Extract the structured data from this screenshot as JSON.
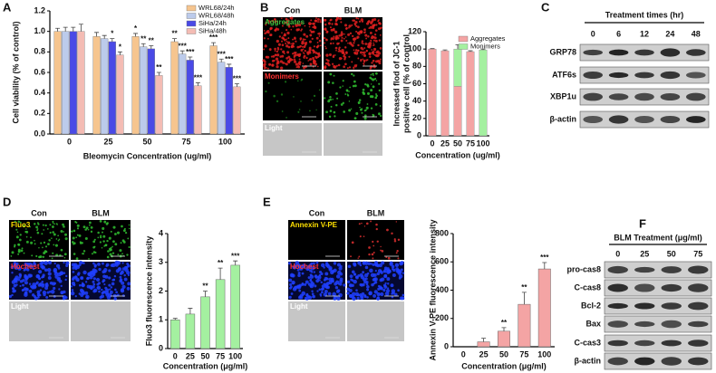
{
  "panel_letters": [
    "A",
    "B",
    "C",
    "D",
    "E",
    "F"
  ],
  "chart_data": [
    {
      "type": "bar",
      "categories": [
        "0",
        "25",
        "50",
        "75",
        "100"
      ],
      "series": [
        {
          "name": "WRL68/24h",
          "color": "#f6c58f",
          "values": [
            1.0,
            0.95,
            0.95,
            0.9,
            0.86
          ],
          "errors": [
            0.03,
            0.04,
            0.03,
            0.03,
            0.03
          ],
          "annotations": [
            null,
            null,
            "*",
            "**",
            "***"
          ]
        },
        {
          "name": "WRL68/48h",
          "color": "#bccbeb",
          "values": [
            1.0,
            0.93,
            0.85,
            0.78,
            0.7
          ],
          "errors": [
            0.04,
            0.03,
            0.03,
            0.03,
            0.03
          ],
          "annotations": [
            null,
            null,
            "**",
            "***",
            "***"
          ]
        },
        {
          "name": "SiHa/24h",
          "color": "#4a4ae6",
          "values": [
            1.0,
            0.9,
            0.83,
            0.72,
            0.65
          ],
          "errors": [
            0.04,
            0.03,
            0.03,
            0.03,
            0.03
          ],
          "annotations": [
            null,
            "*",
            "**",
            "***",
            "***"
          ]
        },
        {
          "name": "SiHa/48h",
          "color": "#f4bcb4",
          "values": [
            1.0,
            0.77,
            0.57,
            0.47,
            0.46
          ],
          "errors": [
            0.07,
            0.03,
            0.03,
            0.03,
            0.03
          ],
          "annotations": [
            null,
            "*",
            "**",
            "***",
            "***"
          ]
        }
      ],
      "ylim": [
        0,
        1.2
      ],
      "yticks": [
        {
          "value": 0,
          "label": "0.0"
        },
        0.2,
        0.4,
        0.6,
        0.8,
        {
          "value": 1,
          "label": "1.0"
        },
        1.2
      ],
      "ylabel": [
        "Cell viability  (% of control)"
      ],
      "xlabel": "Bleomycin Concentration  (ug/ml)",
      "legend": "upper right"
    },
    {
      "type": "bar",
      "stacked": true,
      "categories": [
        "0",
        "25",
        "50",
        "75",
        "100"
      ],
      "series": [
        {
          "name": "Aggregates",
          "color": "#f4a4a4",
          "values": [
            100,
            98,
            57,
            97,
            0
          ],
          "errors": [
            0.5,
            1,
            6,
            1,
            0
          ]
        },
        {
          "name": "Monimers",
          "color": "#a4f0a0",
          "values": [
            0,
            0,
            43,
            0,
            99
          ],
          "errors": [
            0,
            0,
            5,
            0,
            1
          ]
        }
      ],
      "ylim": [
        0,
        120
      ],
      "yticks": [
        0,
        20,
        40,
        60,
        80,
        100,
        120
      ],
      "ylabel": [
        "Increased flod of JC-1",
        "positive cell   (% of control"
      ],
      "xlabel": "Concentration  (ug/ml)",
      "legend": "upper right"
    },
    {
      "type": "bar",
      "categories": [
        "0",
        "25",
        "50",
        "75",
        "100"
      ],
      "color": "#a4f0a0",
      "values": [
        1.0,
        1.2,
        1.8,
        2.4,
        2.9
      ],
      "errors": [
        0.05,
        0.2,
        0.2,
        0.4,
        0.15
      ],
      "annotations": [
        null,
        null,
        "**",
        "**",
        "***"
      ],
      "ylim": [
        0,
        4
      ],
      "yticks": [
        0,
        1,
        2,
        3,
        4
      ],
      "ylabel": [
        "Fluo3 fluorescence intensity"
      ],
      "xlabel": "Concentration   (μg/ml)"
    },
    {
      "type": "bar",
      "categories": [
        "0",
        "25",
        "50",
        "75",
        "100"
      ],
      "color": "#f4a4a4",
      "values": [
        0,
        35,
        110,
        300,
        550
      ],
      "errors": [
        0,
        25,
        25,
        85,
        45
      ],
      "annotations": [
        null,
        null,
        "**",
        "**",
        "***"
      ],
      "ylim": [
        0,
        800
      ],
      "yticks": [
        0,
        200,
        400,
        600,
        800
      ],
      "ylabel": [
        "Annexin V-PE fluorescence intensity"
      ],
      "xlabel": "Concentration   (μg/ml)"
    }
  ],
  "micrographs": [
    {
      "columns": [
        "Con",
        "BLM"
      ],
      "rows": [
        "Aggregates",
        "Monimers",
        "Light"
      ]
    },
    {
      "columns": [
        "Con",
        "BLM"
      ],
      "rows": [
        "Fluo3",
        "Hochest",
        "Light"
      ]
    },
    {
      "columns": [
        "Con",
        "BLM"
      ],
      "rows": [
        "Annexin V-PE",
        "Hochest",
        "Light"
      ]
    }
  ],
  "blots": [
    {
      "title": "Treatment times (hr)",
      "lanes": [
        "0",
        "6",
        "12",
        "24",
        "48"
      ],
      "rows": [
        "GRP78",
        "ATF6s",
        "XBP1u",
        "β-actin"
      ]
    },
    {
      "title": "BLM Treatment  (μg/ml)",
      "lanes": [
        "0",
        "25",
        "50",
        "75"
      ],
      "rows": [
        "pro-cas8",
        "C-cas8",
        "Bcl-2",
        "Bax",
        "C-cas3",
        "β-actin"
      ]
    }
  ]
}
